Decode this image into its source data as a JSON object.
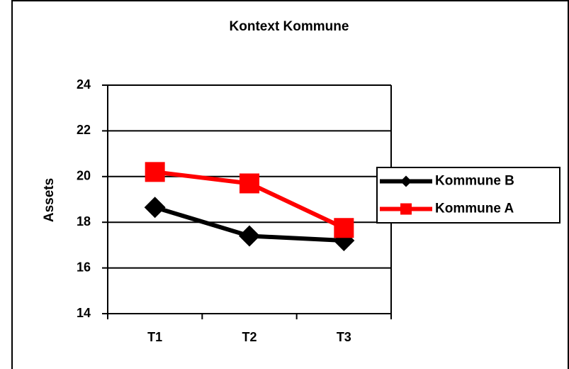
{
  "chart_data": {
    "type": "line",
    "title": "Kontext Kommune",
    "ylabel": "Assets",
    "categories": [
      "T1",
      "T2",
      "T3"
    ],
    "series": [
      {
        "name": "Kommune B",
        "color": "#000000",
        "marker": "diamond",
        "values": [
          18.65,
          17.4,
          17.2
        ]
      },
      {
        "name": "Kommune A",
        "color": "#ff0000",
        "marker": "square",
        "values": [
          20.2,
          19.7,
          17.75
        ]
      }
    ],
    "ylim": [
      14,
      24
    ],
    "yticks": [
      14,
      16,
      18,
      20,
      22,
      24
    ],
    "grid": true,
    "legend": "right"
  }
}
